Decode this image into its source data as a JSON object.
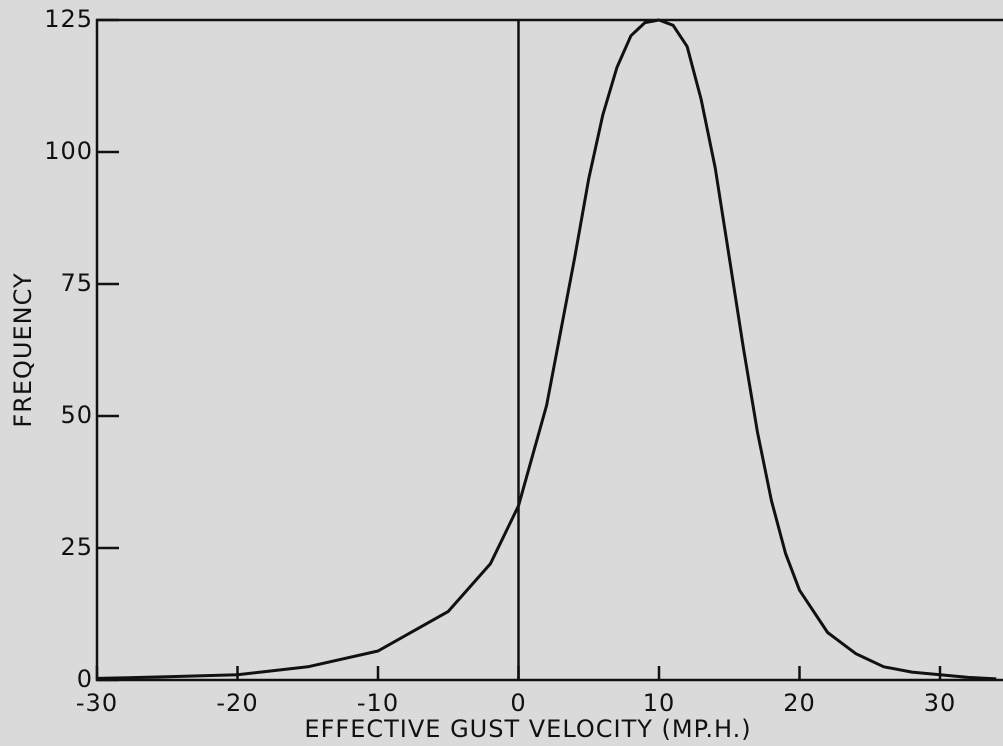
{
  "chart_data": {
    "type": "line",
    "xlabel": "EFFECTIVE GUST VELOCITY (MP.H.)",
    "ylabel": "FREQUENCY",
    "x": [
      -30,
      -25,
      -20,
      -15,
      -10,
      -5,
      -2,
      0,
      2,
      4,
      5,
      6,
      7,
      8,
      9,
      10,
      11,
      12,
      13,
      14,
      15,
      16,
      17,
      18,
      19,
      20,
      22,
      24,
      26,
      28,
      30,
      32,
      34
    ],
    "series": [
      {
        "name": "Frequency",
        "color": "#111111",
        "values": [
          0.3,
          0.6,
          1,
          2.5,
          5.5,
          13,
          22,
          33,
          52,
          80,
          95,
          107,
          116,
          122,
          124.5,
          125,
          124,
          120,
          110,
          97,
          80,
          63,
          47,
          34,
          24,
          17,
          9,
          5,
          2.5,
          1.5,
          1,
          0.5,
          0.2
        ]
      }
    ],
    "xlim": [
      -30,
      34.5
    ],
    "ylim": [
      0,
      125
    ],
    "xticks": [
      -30,
      -20,
      -10,
      0,
      10,
      20,
      30
    ],
    "yticks": [
      0,
      25,
      50,
      75,
      100,
      125
    ]
  }
}
